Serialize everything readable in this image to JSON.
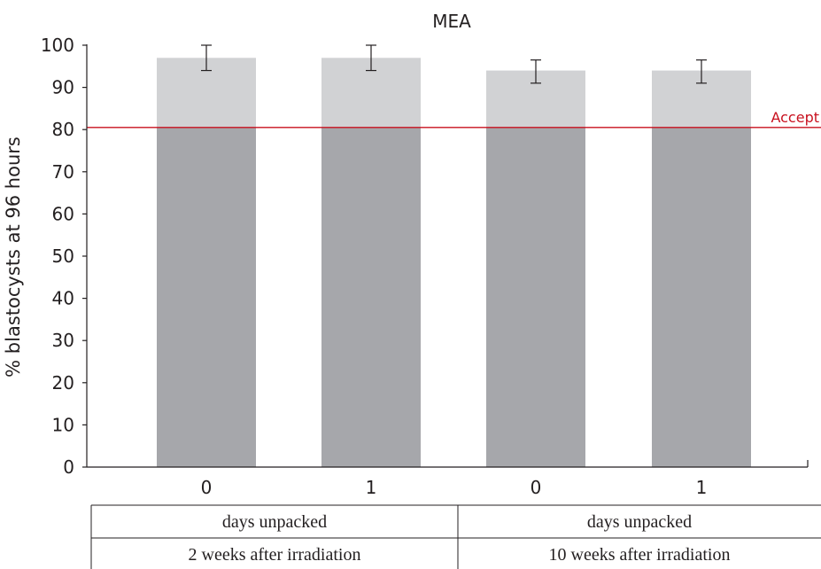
{
  "chart_data": {
    "type": "bar",
    "title": "MEA",
    "ylabel": "% blastocysts at 96 hours",
    "xlabel": "",
    "ylim": [
      0,
      100
    ],
    "yticks": [
      0,
      10,
      20,
      30,
      40,
      50,
      60,
      70,
      80,
      90,
      100
    ],
    "categories": [
      "0",
      "1",
      "0",
      "1"
    ],
    "values": [
      97,
      97,
      94,
      94
    ],
    "error_low": [
      94,
      94,
      91,
      91
    ],
    "error_high": [
      100,
      100,
      96.5,
      96.5
    ],
    "reference_line": {
      "value": 80.5,
      "label": "Accept",
      "color": "#c8101e"
    },
    "group_rows": [
      {
        "labels": [
          "days unpacked",
          "days unpacked"
        ]
      },
      {
        "labels": [
          "2 weeks after irradiation",
          "10 weeks after irradiation"
        ]
      }
    ],
    "grid": false,
    "colors": {
      "bar_upper": "#d1d2d4",
      "bar_lower": "#a6a7ab",
      "error_bar": "#231f20",
      "axis": "#231f20",
      "text": "#231f20"
    }
  }
}
